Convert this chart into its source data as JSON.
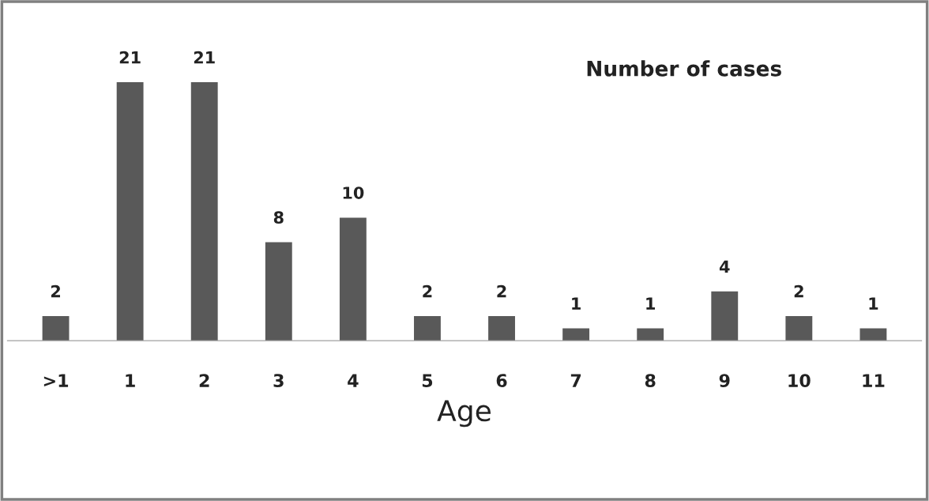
{
  "chart_data": {
    "type": "bar",
    "title": "Number of cases",
    "xlabel": "Age",
    "categories": [
      ">1",
      "1",
      "2",
      "3",
      "4",
      "5",
      "6",
      "7",
      "8",
      "9",
      "10",
      "11"
    ],
    "values": [
      2,
      21,
      21,
      8,
      10,
      2,
      2,
      1,
      1,
      4,
      2,
      1
    ],
    "color": "#595959",
    "data_labels": true,
    "grid": false
  }
}
